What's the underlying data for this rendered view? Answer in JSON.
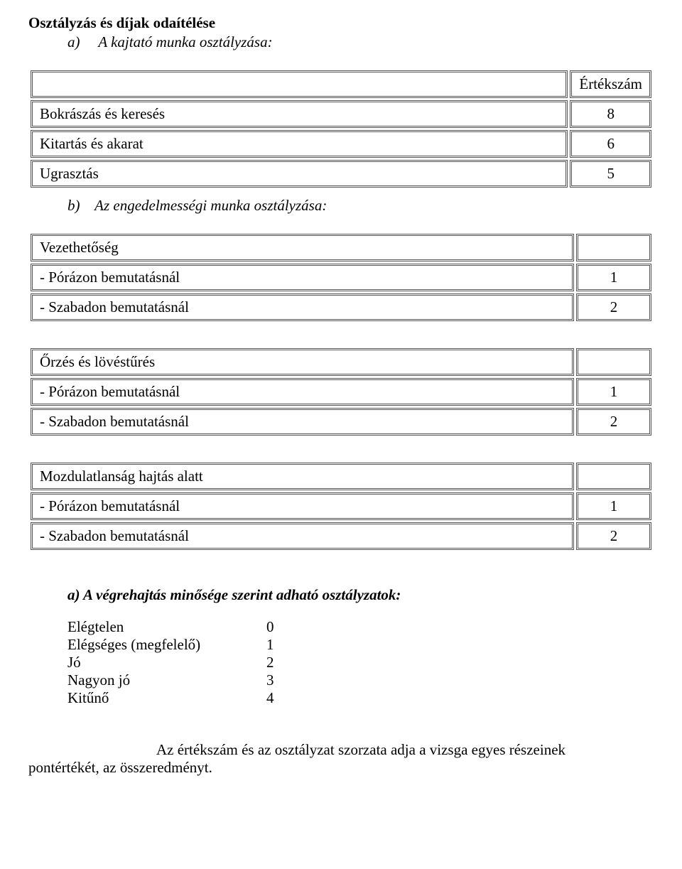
{
  "title": "Osztályzás és díjak odaítélése",
  "section_a_label": "a)",
  "section_a_text": "A kajtató munka osztályzása:",
  "table1": {
    "header_label": "",
    "header_value": "Értékszám",
    "rows": [
      {
        "label": "Bokrászás és keresés",
        "value": "8"
      },
      {
        "label": "Kitartás és akarat",
        "value": "6"
      },
      {
        "label": "Ugrasztás",
        "value": "5"
      }
    ]
  },
  "section_b_label": "b)",
  "section_b_text": "Az engedelmességi munka osztályzása:",
  "table2": {
    "header_label": "Vezethetőség",
    "header_value": "",
    "rows": [
      {
        "label": "-   Pórázon bemutatásnál",
        "value": "1"
      },
      {
        "label": "-   Szabadon bemutatásnál",
        "value": "2"
      }
    ]
  },
  "table3": {
    "header_label": "Őrzés és lövéstűrés",
    "header_value": "",
    "rows": [
      {
        "label": "-   Pórázon bemutatásnál",
        "value": "1"
      },
      {
        "label": "-   Szabadon bemutatásnál",
        "value": "2"
      }
    ]
  },
  "table4": {
    "header_label": "Mozdulatlanság hajtás alatt",
    "header_value": "",
    "rows": [
      {
        "label": "-   Pórázon bemutatásnál",
        "value": "1"
      },
      {
        "label": "-   Szabadon bemutatásnál",
        "value": "2"
      }
    ]
  },
  "grades_heading": "a) A végrehajtás minősége szerint adható osztályzatok:",
  "grades": [
    {
      "label": "Elégtelen",
      "value": "0"
    },
    {
      "label": "Elégséges (megfelelő)",
      "value": "1"
    },
    {
      "label": "Jó",
      "value": "2"
    },
    {
      "label": "Nagyon jó",
      "value": "3"
    },
    {
      "label": "Kitűnő",
      "value": "4"
    }
  ],
  "footer_line1": "Az értékszám és az osztályzat szorzata adja a vizsga egyes részeinek",
  "footer_line2": "pontértékét, az összeredményt."
}
